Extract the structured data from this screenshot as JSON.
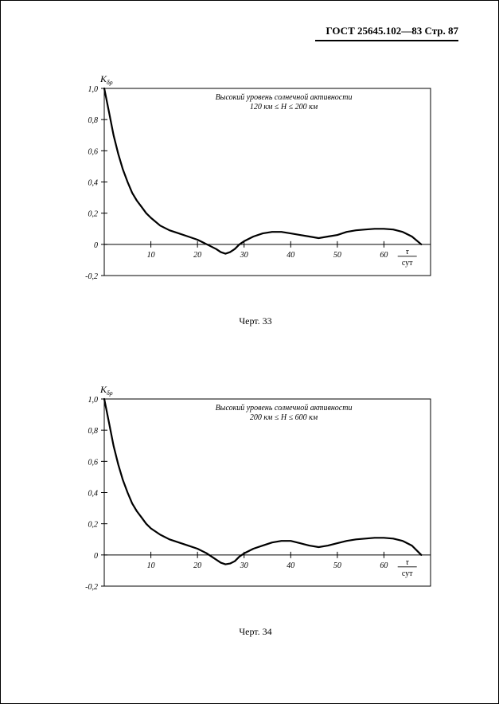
{
  "header": "ГОСТ 25645.102—83  Стр. 87",
  "charts": [
    {
      "id": "chart1",
      "type": "line",
      "title_line1": "Высокий уровень солнечной активности",
      "title_line2": "120 км ≤ H ≤ 200 км",
      "y_label_symbol": "K",
      "y_label_sub": "δρ",
      "x_label_top": "τ",
      "x_label_bot": "сут",
      "caption": "Черт. 33",
      "xlim": [
        0,
        70
      ],
      "ylim": [
        -0.2,
        1.0
      ],
      "x_ticks": [
        10,
        20,
        30,
        40,
        50,
        60,
        70
      ],
      "y_ticks": [
        -0.2,
        0,
        0.2,
        0.4,
        0.6,
        0.8,
        1.0
      ],
      "y_tick_labels": [
        "-0,2",
        "0",
        "0,2",
        "0,4",
        "0,6",
        "0,8",
        "1,0"
      ],
      "stroke_color": "#000000",
      "background_color": "#ffffff",
      "line_width": 2.2,
      "title_fontsize": 10,
      "tick_fontsize": 10,
      "data": [
        [
          0,
          1.0
        ],
        [
          1,
          0.85
        ],
        [
          2,
          0.7
        ],
        [
          3,
          0.58
        ],
        [
          4,
          0.48
        ],
        [
          5,
          0.4
        ],
        [
          6,
          0.33
        ],
        [
          7,
          0.28
        ],
        [
          8,
          0.24
        ],
        [
          9,
          0.2
        ],
        [
          10,
          0.17
        ],
        [
          12,
          0.12
        ],
        [
          14,
          0.09
        ],
        [
          16,
          0.07
        ],
        [
          18,
          0.05
        ],
        [
          20,
          0.03
        ],
        [
          22,
          0.0
        ],
        [
          24,
          -0.03
        ],
        [
          25,
          -0.05
        ],
        [
          26,
          -0.06
        ],
        [
          27,
          -0.05
        ],
        [
          28,
          -0.03
        ],
        [
          29,
          0.0
        ],
        [
          30,
          0.02
        ],
        [
          32,
          0.05
        ],
        [
          34,
          0.07
        ],
        [
          36,
          0.08
        ],
        [
          38,
          0.08
        ],
        [
          40,
          0.07
        ],
        [
          42,
          0.06
        ],
        [
          44,
          0.05
        ],
        [
          46,
          0.04
        ],
        [
          48,
          0.05
        ],
        [
          50,
          0.06
        ],
        [
          52,
          0.08
        ],
        [
          54,
          0.09
        ],
        [
          56,
          0.095
        ],
        [
          58,
          0.1
        ],
        [
          60,
          0.1
        ],
        [
          62,
          0.095
        ],
        [
          64,
          0.08
        ],
        [
          66,
          0.05
        ],
        [
          68,
          0.0
        ]
      ]
    },
    {
      "id": "chart2",
      "type": "line",
      "title_line1": "Высокий уровень солнечной активности",
      "title_line2": "200 км ≤ H ≤ 600 км",
      "y_label_symbol": "K",
      "y_label_sub": "δρ",
      "x_label_top": "τ",
      "x_label_bot": "сут",
      "caption": "Черт. 34",
      "xlim": [
        0,
        70
      ],
      "ylim": [
        -0.2,
        1.0
      ],
      "x_ticks": [
        10,
        20,
        30,
        40,
        50,
        60,
        70
      ],
      "y_ticks": [
        -0.2,
        0,
        0.2,
        0.4,
        0.6,
        0.8,
        1.0
      ],
      "y_tick_labels": [
        "-0,2",
        "0",
        "0,2",
        "0,4",
        "0,6",
        "0,8",
        "1,0"
      ],
      "stroke_color": "#000000",
      "background_color": "#ffffff",
      "line_width": 2.2,
      "title_fontsize": 10,
      "tick_fontsize": 10,
      "data": [
        [
          0,
          1.0
        ],
        [
          1,
          0.85
        ],
        [
          2,
          0.7
        ],
        [
          3,
          0.58
        ],
        [
          4,
          0.48
        ],
        [
          5,
          0.4
        ],
        [
          6,
          0.33
        ],
        [
          7,
          0.28
        ],
        [
          8,
          0.24
        ],
        [
          9,
          0.2
        ],
        [
          10,
          0.17
        ],
        [
          12,
          0.13
        ],
        [
          14,
          0.1
        ],
        [
          16,
          0.08
        ],
        [
          18,
          0.06
        ],
        [
          20,
          0.04
        ],
        [
          22,
          0.01
        ],
        [
          24,
          -0.03
        ],
        [
          25,
          -0.05
        ],
        [
          26,
          -0.06
        ],
        [
          27,
          -0.055
        ],
        [
          28,
          -0.04
        ],
        [
          29,
          -0.01
        ],
        [
          30,
          0.01
        ],
        [
          32,
          0.04
        ],
        [
          34,
          0.06
        ],
        [
          36,
          0.08
        ],
        [
          38,
          0.09
        ],
        [
          40,
          0.09
        ],
        [
          42,
          0.075
        ],
        [
          44,
          0.06
        ],
        [
          46,
          0.05
        ],
        [
          48,
          0.06
        ],
        [
          50,
          0.075
        ],
        [
          52,
          0.09
        ],
        [
          54,
          0.1
        ],
        [
          56,
          0.105
        ],
        [
          58,
          0.11
        ],
        [
          60,
          0.11
        ],
        [
          62,
          0.105
        ],
        [
          64,
          0.09
        ],
        [
          66,
          0.06
        ],
        [
          68,
          0.0
        ]
      ]
    }
  ]
}
